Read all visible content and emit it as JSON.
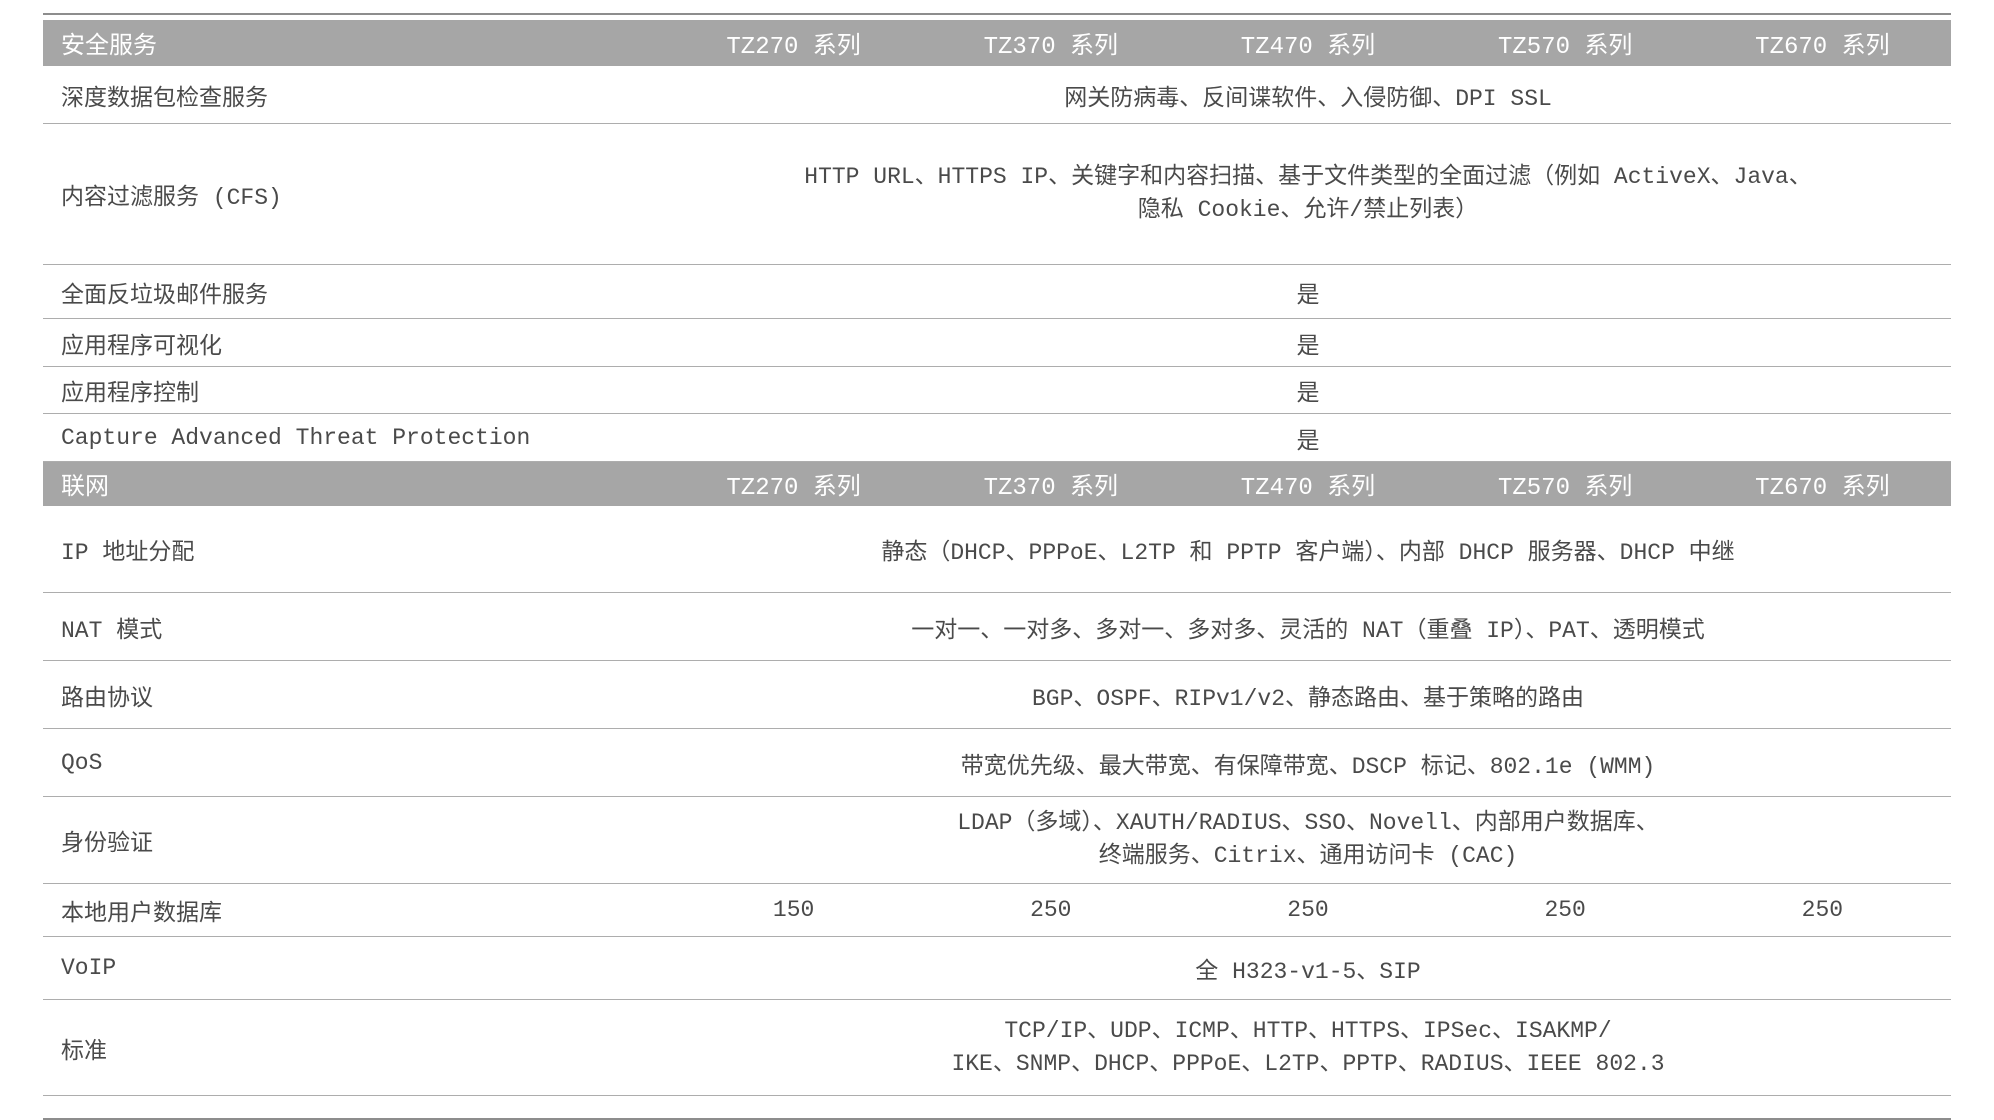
{
  "colors": {
    "section_header_bg": "#a6a6a6",
    "section_header_text": "#ffffff",
    "body_text": "#4a4a4a",
    "row_divider": "#adadad",
    "outer_rule": "#8d8d8d"
  },
  "table": {
    "sections": [
      {
        "header": {
          "label": "安全服务",
          "columns": [
            "TZ270 系列",
            "TZ370 系列",
            "TZ470 系列",
            "TZ570 系列",
            "TZ670 系列"
          ]
        },
        "rows": [
          {
            "label": "深度数据包检查服务",
            "value": "网关防病毒、反间谍软件、入侵防御、DPI SSL"
          },
          {
            "label": "内容过滤服务 (CFS)",
            "lines": [
              "HTTP URL、HTTPS IP、关键字和内容扫描、基于文件类型的全面过滤（例如 ActiveX、Java、",
              "隐私 Cookie、允许/禁止列表）"
            ]
          },
          {
            "label": "全面反垃圾邮件服务",
            "value": "是"
          },
          {
            "label": "应用程序可视化",
            "value": "是"
          },
          {
            "label": "应用程序控制",
            "value": "是"
          },
          {
            "label": "Capture Advanced Threat Protection",
            "value": "是"
          }
        ]
      },
      {
        "header": {
          "label": "联网",
          "columns": [
            "TZ270 系列",
            "TZ370 系列",
            "TZ470 系列",
            "TZ570 系列",
            "TZ670 系列"
          ]
        },
        "rows": [
          {
            "label": "IP 地址分配",
            "value": "静态（DHCP、PPPoE、L2TP 和 PPTP 客户端）、内部 DHCP 服务器、DHCP 中继"
          },
          {
            "label": "NAT 模式",
            "value": "一对一、一对多、多对一、多对多、灵活的 NAT（重叠 IP）、PAT、透明模式"
          },
          {
            "label": "路由协议",
            "value": "BGP、OSPF、RIPv1/v2、静态路由、基于策略的路由"
          },
          {
            "label": "QoS",
            "value": "带宽优先级、最大带宽、有保障带宽、DSCP 标记、802.1e (WMM)"
          },
          {
            "label": "身份验证",
            "lines": [
              "LDAP（多域）、XAUTH/RADIUS、SSO、Novell、内部用户数据库、",
              "终端服务、Citrix、通用访问卡 (CAC)"
            ]
          },
          {
            "label": "本地用户数据库",
            "values": [
              "150",
              "250",
              "250",
              "250",
              "250"
            ]
          },
          {
            "label": "VoIP",
            "value": "全 H323-v1-5、SIP"
          },
          {
            "label": "标准",
            "lines": [
              "TCP/IP、UDP、ICMP、HTTP、HTTPS、IPSec、ISAKMP/",
              "IKE、SNMP、DHCP、PPPoE、L2TP、PPTP、RADIUS、IEEE 802.3"
            ]
          }
        ]
      }
    ]
  }
}
